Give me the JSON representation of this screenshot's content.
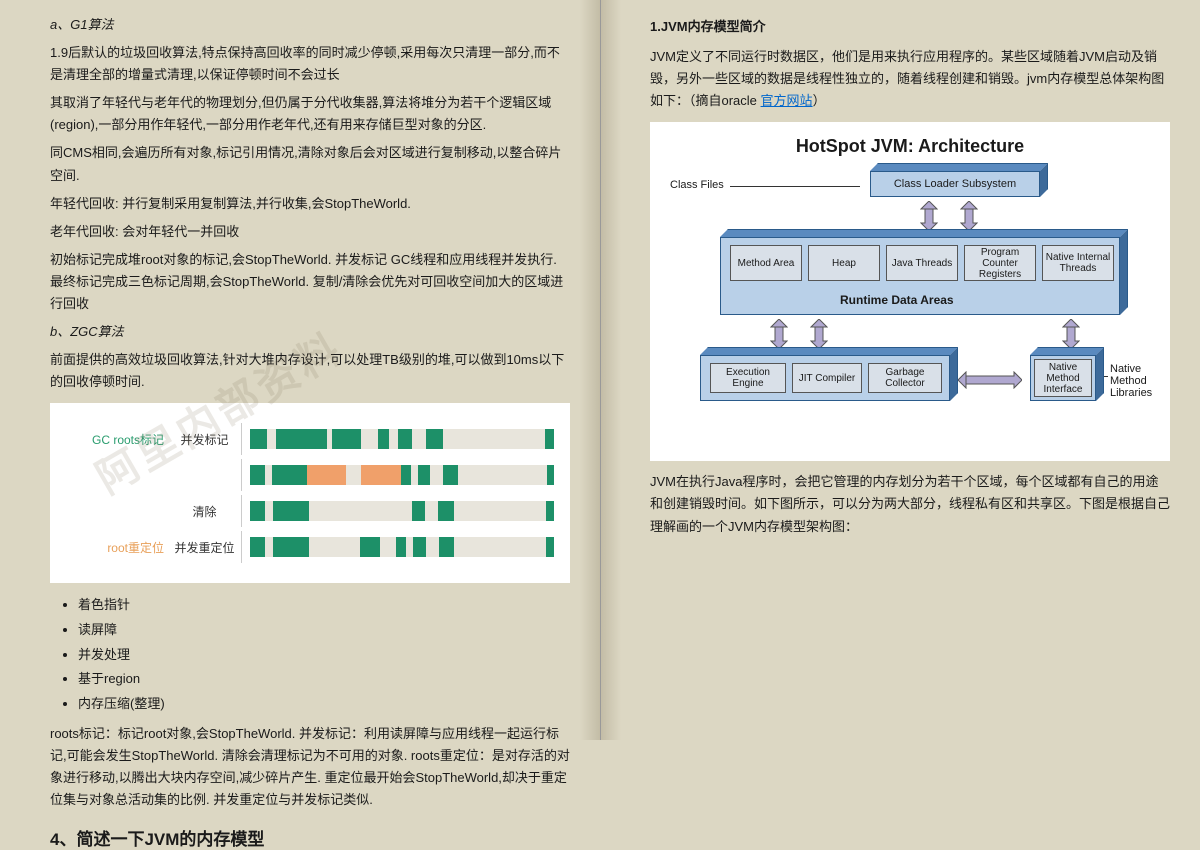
{
  "left": {
    "s1_title": "a、G1算法",
    "s1_p1": "1.9后默认的垃圾回收算法,特点保持高回收率的同时减少停顿,采用每次只清理一部分,而不是清理全部的增量式清理,以保证停顿时间不会过长",
    "s1_p2": "其取消了年轻代与老年代的物理划分,但仍属于分代收集器,算法将堆分为若干个逻辑区域(region),一部分用作年轻代,一部分用作老年代,还有用来存储巨型对象的分区.",
    "s1_p3": "同CMS相同,会遍历所有对象,标记引用情况,清除对象后会对区域进行复制移动,以整合碎片空间.",
    "s1_p4": "年轻代回收: 并行复制采用复制算法,并行收集,会StopTheWorld.",
    "s1_p5": "老年代回收: 会对年轻代一并回收",
    "s1_p6": "初始标记完成堆root对象的标记,会StopTheWorld. 并发标记 GC线程和应用线程并发执行. 最终标记完成三色标记周期,会StopTheWorld. 复制/清除会优先对可回收空间加大的区域进行回收",
    "s2_title": "b、ZGC算法",
    "s2_p1": "前面提供的高效垃圾回收算法,针对大堆内存设计,可以处理TB级别的堆,可以做到10ms以下的回收停顿时间.",
    "zgc": {
      "colors": {
        "green": "#1d9068",
        "orange": "#f0a06a",
        "beige": "#e8e5dc"
      },
      "rows": [
        {
          "left": "GC roots标记",
          "leftClass": "zgc-gc",
          "mid": "并发标记",
          "segs": [
            [
              "g",
              6
            ],
            [
              "b",
              3
            ],
            [
              "g",
              18
            ],
            [
              "b",
              2
            ],
            [
              "g",
              10
            ],
            [
              "b",
              6
            ],
            [
              "g",
              4
            ],
            [
              "b",
              3
            ],
            [
              "g",
              5
            ],
            [
              "b",
              5
            ],
            [
              "g",
              6
            ],
            [
              "b",
              36
            ],
            [
              "g",
              3
            ]
          ]
        },
        {
          "left": "",
          "leftClass": "",
          "mid": "",
          "segs": [
            [
              "g",
              6
            ],
            [
              "b",
              3
            ],
            [
              "g",
              14
            ],
            [
              "o",
              16
            ],
            [
              "b",
              6
            ],
            [
              "o",
              16
            ],
            [
              "g",
              4
            ],
            [
              "b",
              3
            ],
            [
              "g",
              5
            ],
            [
              "b",
              5
            ],
            [
              "g",
              6
            ],
            [
              "b",
              36
            ],
            [
              "g",
              3
            ]
          ]
        },
        {
          "left": "",
          "leftClass": "",
          "mid": "清除",
          "segs": [
            [
              "g",
              6
            ],
            [
              "b",
              3
            ],
            [
              "g",
              14
            ],
            [
              "b",
              40
            ],
            [
              "g",
              5
            ],
            [
              "b",
              5
            ],
            [
              "g",
              6
            ],
            [
              "b",
              36
            ],
            [
              "g",
              3
            ]
          ]
        },
        {
          "left": "root重定位",
          "leftClass": "zgc-root",
          "mid": "并发重定位",
          "segs": [
            [
              "g",
              6
            ],
            [
              "b",
              3
            ],
            [
              "g",
              14
            ],
            [
              "b",
              20
            ],
            [
              "g",
              8
            ],
            [
              "b",
              6
            ],
            [
              "g",
              4
            ],
            [
              "b",
              3
            ],
            [
              "g",
              5
            ],
            [
              "b",
              5
            ],
            [
              "g",
              6
            ],
            [
              "b",
              36
            ],
            [
              "g",
              3
            ]
          ]
        }
      ]
    },
    "bullets": [
      "着色指针",
      "读屏障",
      "并发处理",
      "基于region",
      "内存压缩(整理)"
    ],
    "s3_p1": "roots标记：标记root对象,会StopTheWorld. 并发标记：利用读屏障与应用线程一起运行标记,可能会发生StopTheWorld. 清除会清理标记为不可用的对象. roots重定位：是对存活的对象进行移动,以腾出大块内存空间,减少碎片产生. 重定位最开始会StopTheWorld,却决于重定位集与对象总活动集的比例. 并发重定位与并发标记类似.",
    "s4_h": "4、简述一下JVM的内存模型"
  },
  "right": {
    "h1": "1.JVM内存模型简介",
    "p1a": "JVM定义了不同运行时数据区，他们是用来执行应用程序的。某些区域随着JVM启动及销毁，另外一些区域的数据是线程性独立的，随着线程创建和销毁。jvm内存模型总体架构图如下：（摘自oracle",
    "link": "官方网站",
    "p1b": "）",
    "jvm": {
      "title": "HotSpot JVM: Architecture",
      "class_files": "Class Files",
      "loader": "Class Loader Subsystem",
      "runtime_label": "Runtime Data Areas",
      "inner": [
        "Method Area",
        "Heap",
        "Java Threads",
        "Program Counter Registers",
        "Native Internal Threads"
      ],
      "exec": [
        "Execution Engine",
        "JIT Compiler",
        "Garbage Collector"
      ],
      "nmi": "Native Method Interface",
      "nml": "Native Method Libraries",
      "colors": {
        "front": "#b9d0e8",
        "border": "#2a5a8a",
        "inner_bg": "#d9e0e8",
        "top": "#5a8abf",
        "side": "#3d6a9a"
      }
    },
    "p2": "JVM在执行Java程序时，会把它管理的内存划分为若干个区域，每个区域都有自己的用途和创建销毁时间。如下图所示，可以分为两大部分，线程私有区和共享区。下图是根据自己理解画的一个JVM内存模型架构图："
  },
  "watermark": "阿里内部资料"
}
